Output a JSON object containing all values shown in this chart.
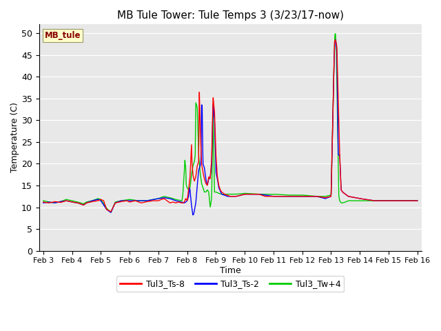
{
  "title": "MB Tule Tower: Tule Temps 3 (3/23/17-now)",
  "xlabel": "Time",
  "ylabel": "Temperature (C)",
  "ylim": [
    0,
    52
  ],
  "yticks": [
    0,
    5,
    10,
    15,
    20,
    25,
    30,
    35,
    40,
    45,
    50
  ],
  "xtick_labels": [
    "Feb 3",
    "Feb 4",
    "Feb 5",
    "Feb 6",
    "Feb 7",
    "Feb 8",
    "Feb 9",
    "Feb 10",
    "Feb 11",
    "Feb 12",
    "Feb 13",
    "Feb 14",
    "Feb 15",
    "Feb 16"
  ],
  "colors": {
    "Tul3_Ts-8": "#ff0000",
    "Tul3_Ts-2": "#0000ff",
    "Tul3_Tw+4": "#00cc00"
  },
  "bg_color": "#e8e8e8",
  "watermark_text": "MB_tule",
  "watermark_bg": "#ffffcc",
  "watermark_edge": "#999966",
  "line_width": 1.0
}
